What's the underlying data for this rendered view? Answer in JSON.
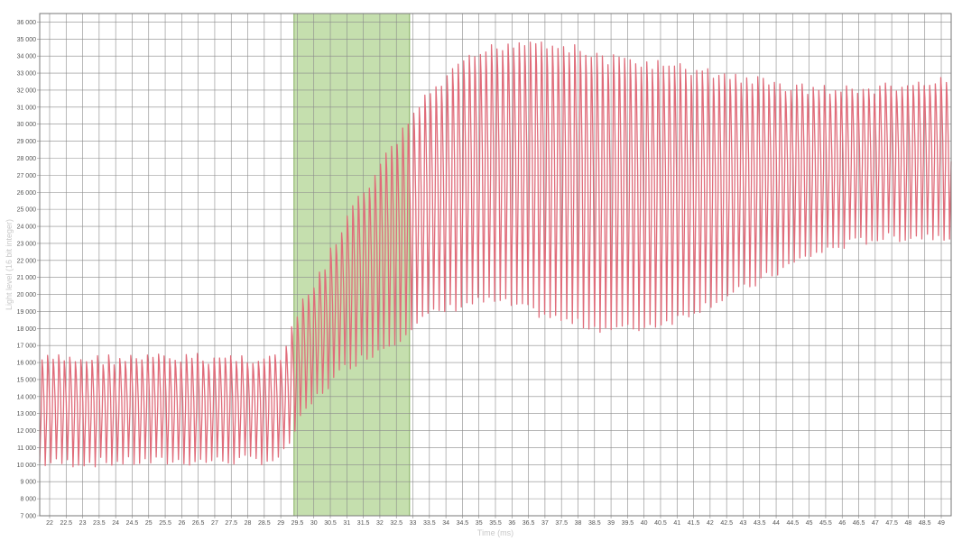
{
  "chart_data": {
    "type": "line",
    "xlabel": "Time (ms)",
    "ylabel": "Light level (16 bit integer)",
    "xlim": [
      21.7,
      49.3
    ],
    "ylim": [
      7000,
      36500
    ],
    "x_ticks": [
      22,
      22.5,
      23,
      23.5,
      24,
      24.5,
      25,
      25.5,
      26,
      26.5,
      27,
      27.5,
      28,
      28.5,
      29,
      29.5,
      30,
      30.5,
      31,
      31.5,
      32,
      32.5,
      33,
      33.5,
      34,
      34.5,
      35,
      35.5,
      36,
      36.5,
      37,
      37.5,
      38,
      38.5,
      39,
      39.5,
      40,
      40.5,
      41,
      41.5,
      42,
      42.5,
      43,
      43.5,
      44,
      44.5,
      45,
      45.5,
      46,
      46.5,
      47,
      47.5,
      48,
      48.5,
      49
    ],
    "x_tick_labels": [
      "22",
      "22.5",
      "23",
      "23.5",
      "24",
      "24.5",
      "25",
      "25.5",
      "26",
      "26.5",
      "27",
      "27.5",
      "28",
      "28.5",
      "29",
      "29.5",
      "30",
      "30.5",
      "31",
      "31.5",
      "32",
      "32.5",
      "33",
      "33.5",
      "34",
      "34.5",
      "35",
      "35.5",
      "36",
      "36.5",
      "37",
      "37.5",
      "38",
      "38.5",
      "39",
      "39.5",
      "40",
      "40.5",
      "41",
      "41.5",
      "42",
      "42.5",
      "43",
      "43.5",
      "44",
      "44.5",
      "45",
      "45.5",
      "46",
      "46.5",
      "47",
      "47.5",
      "48",
      "48.5",
      "49"
    ],
    "y_ticks": [
      7000,
      8000,
      9000,
      10000,
      11000,
      12000,
      13000,
      14000,
      15000,
      16000,
      17000,
      18000,
      19000,
      20000,
      21000,
      22000,
      23000,
      24000,
      25000,
      26000,
      27000,
      28000,
      29000,
      30000,
      31000,
      32000,
      33000,
      34000,
      35000,
      36000
    ],
    "y_tick_labels": [
      "7 000",
      "8 000",
      "9 000",
      "10 000",
      "11 000",
      "12 000",
      "13 000",
      "14 000",
      "15 000",
      "16 000",
      "17 000",
      "18 000",
      "19 000",
      "20 000",
      "21 000",
      "22 000",
      "23 000",
      "24 000",
      "25 000",
      "26 000",
      "27 000",
      "28 000",
      "29 000",
      "30 000",
      "31 000",
      "32 000",
      "33 000",
      "34 000",
      "35 000",
      "36 000"
    ],
    "grid": true,
    "legend": "none",
    "highlight_region": {
      "x": [
        29.4,
        32.9
      ],
      "color": "#c5dfae"
    },
    "series": [
      {
        "color": "#e06c7a",
        "period_ms": 0.168,
        "start_x": 21.7,
        "end_x": 49.3,
        "envelope": {
          "x": [
            21.7,
            29.0,
            29.5,
            30.0,
            30.5,
            31.0,
            31.5,
            32.0,
            32.5,
            32.9,
            33.5,
            34.0,
            34.5,
            35.0,
            35.5,
            36.0,
            36.5,
            37.0,
            37.5,
            38.0,
            38.5,
            39.0,
            39.5,
            40.0,
            41.0,
            42.0,
            43.0,
            44.0,
            45.0,
            46.0,
            47.0,
            48.0,
            49.3
          ],
          "high": [
            16500,
            16600,
            19500,
            21000,
            23000,
            25000,
            26500,
            28000,
            29500,
            30800,
            32200,
            33100,
            33900,
            34500,
            34900,
            35100,
            35200,
            35100,
            34900,
            34600,
            34300,
            34100,
            34000,
            33900,
            33600,
            33300,
            33000,
            32600,
            32400,
            32300,
            32400,
            32600,
            32800
          ],
          "low": [
            9800,
            10000,
            12000,
            13500,
            14500,
            15500,
            16000,
            16500,
            17000,
            17800,
            18500,
            18800,
            19100,
            19300,
            19300,
            19100,
            18800,
            18500,
            18200,
            18000,
            17800,
            17700,
            17700,
            17800,
            18300,
            19200,
            20000,
            21000,
            22000,
            22600,
            23000,
            23100,
            23200
          ]
        }
      }
    ]
  }
}
